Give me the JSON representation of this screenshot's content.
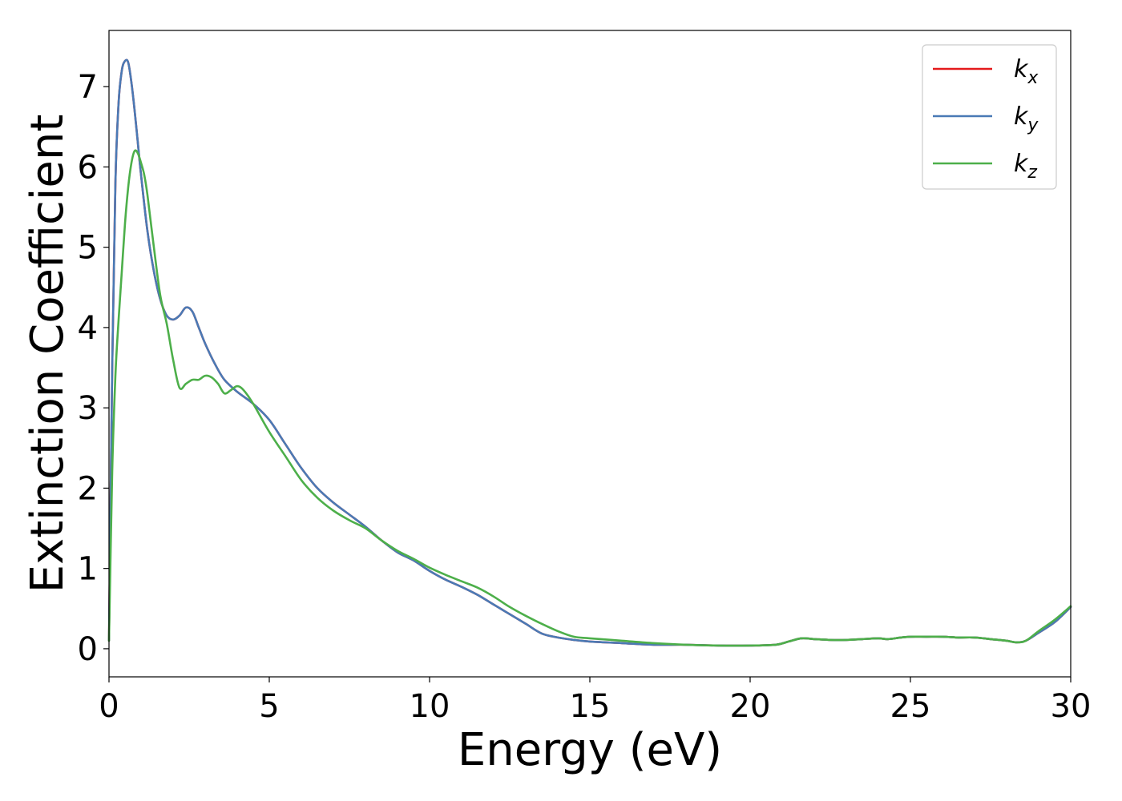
{
  "chart_data": {
    "type": "line",
    "title": "",
    "xlabel": "Energy (eV)",
    "ylabel": "Extinction Coefficient",
    "xlim": [
      0,
      30
    ],
    "ylim": [
      -0.35,
      7.7
    ],
    "xticks": [
      0,
      5,
      10,
      15,
      20,
      25,
      30
    ],
    "yticks": [
      0,
      1,
      2,
      3,
      4,
      5,
      6,
      7
    ],
    "grid": false,
    "legend_position": "top-right",
    "series": [
      {
        "name": "k_x",
        "label_base": "k",
        "label_sub": "x",
        "color": "#e41a1c",
        "x": [
          0,
          0.1,
          0.2,
          0.3,
          0.4,
          0.5,
          0.6,
          0.7,
          0.8,
          0.9,
          1.0,
          1.2,
          1.4,
          1.6,
          1.8,
          2.0,
          2.2,
          2.4,
          2.6,
          2.8,
          3.0,
          3.3,
          3.6,
          4.0,
          4.5,
          5.0,
          5.5,
          6.0,
          6.5,
          7.0,
          7.5,
          8.0,
          8.5,
          9.0,
          9.5,
          10.0,
          10.5,
          11.0,
          11.5,
          12.0,
          12.5,
          13.0,
          13.5,
          14.0,
          14.5,
          15.0,
          16.0,
          17.0,
          18.0,
          19.0,
          20.0,
          20.8,
          21.2,
          21.6,
          22.0,
          22.5,
          23.0,
          23.5,
          24.0,
          24.3,
          24.7,
          25.0,
          25.5,
          26.0,
          26.5,
          27.0,
          27.5,
          28.0,
          28.3,
          28.6,
          29.0,
          29.5,
          30.0
        ],
        "y": [
          0.1,
          3.5,
          5.8,
          6.8,
          7.2,
          7.32,
          7.3,
          7.05,
          6.7,
          6.3,
          5.9,
          5.2,
          4.7,
          4.35,
          4.15,
          4.1,
          4.15,
          4.25,
          4.2,
          4.0,
          3.8,
          3.55,
          3.35,
          3.2,
          3.05,
          2.85,
          2.55,
          2.25,
          2.0,
          1.82,
          1.67,
          1.52,
          1.35,
          1.2,
          1.1,
          0.97,
          0.86,
          0.77,
          0.67,
          0.55,
          0.43,
          0.31,
          0.19,
          0.14,
          0.11,
          0.09,
          0.07,
          0.05,
          0.05,
          0.04,
          0.04,
          0.05,
          0.09,
          0.13,
          0.12,
          0.11,
          0.11,
          0.12,
          0.13,
          0.12,
          0.14,
          0.15,
          0.15,
          0.15,
          0.14,
          0.14,
          0.12,
          0.1,
          0.08,
          0.1,
          0.2,
          0.33,
          0.52
        ]
      },
      {
        "name": "k_y",
        "label_base": "k",
        "label_sub": "y",
        "color": "#4a7ab5",
        "x": [
          0,
          0.1,
          0.2,
          0.3,
          0.4,
          0.5,
          0.6,
          0.7,
          0.8,
          0.9,
          1.0,
          1.2,
          1.4,
          1.6,
          1.8,
          2.0,
          2.2,
          2.4,
          2.6,
          2.8,
          3.0,
          3.3,
          3.6,
          4.0,
          4.5,
          5.0,
          5.5,
          6.0,
          6.5,
          7.0,
          7.5,
          8.0,
          8.5,
          9.0,
          9.5,
          10.0,
          10.5,
          11.0,
          11.5,
          12.0,
          12.5,
          13.0,
          13.5,
          14.0,
          14.5,
          15.0,
          16.0,
          17.0,
          18.0,
          19.0,
          20.0,
          20.8,
          21.2,
          21.6,
          22.0,
          22.5,
          23.0,
          23.5,
          24.0,
          24.3,
          24.7,
          25.0,
          25.5,
          26.0,
          26.5,
          27.0,
          27.5,
          28.0,
          28.3,
          28.6,
          29.0,
          29.5,
          30.0
        ],
        "y": [
          0.1,
          3.5,
          5.8,
          6.8,
          7.2,
          7.32,
          7.3,
          7.05,
          6.7,
          6.3,
          5.9,
          5.2,
          4.7,
          4.35,
          4.15,
          4.1,
          4.15,
          4.25,
          4.2,
          4.0,
          3.8,
          3.55,
          3.35,
          3.2,
          3.05,
          2.85,
          2.55,
          2.25,
          2.0,
          1.82,
          1.67,
          1.52,
          1.35,
          1.2,
          1.1,
          0.97,
          0.86,
          0.77,
          0.67,
          0.55,
          0.43,
          0.31,
          0.19,
          0.14,
          0.11,
          0.09,
          0.07,
          0.05,
          0.05,
          0.04,
          0.04,
          0.05,
          0.09,
          0.13,
          0.12,
          0.11,
          0.11,
          0.12,
          0.13,
          0.12,
          0.14,
          0.15,
          0.15,
          0.15,
          0.14,
          0.14,
          0.12,
          0.1,
          0.08,
          0.1,
          0.2,
          0.33,
          0.52
        ]
      },
      {
        "name": "k_z",
        "label_base": "k",
        "label_sub": "z",
        "color": "#4daf4a",
        "x": [
          0,
          0.1,
          0.2,
          0.3,
          0.4,
          0.5,
          0.6,
          0.7,
          0.8,
          0.9,
          1.0,
          1.1,
          1.2,
          1.4,
          1.6,
          1.8,
          2.0,
          2.2,
          2.4,
          2.6,
          2.8,
          3.0,
          3.2,
          3.4,
          3.6,
          3.8,
          4.0,
          4.2,
          4.5,
          5.0,
          5.5,
          6.0,
          6.5,
          7.0,
          7.5,
          8.0,
          8.5,
          9.0,
          9.5,
          10.0,
          10.5,
          11.0,
          11.5,
          12.0,
          12.5,
          13.0,
          13.5,
          14.0,
          14.5,
          15.0,
          16.0,
          17.0,
          18.0,
          19.0,
          20.0,
          20.8,
          21.2,
          21.6,
          22.0,
          22.5,
          23.0,
          23.5,
          24.0,
          24.3,
          24.7,
          25.0,
          25.5,
          26.0,
          26.5,
          27.0,
          27.5,
          28.0,
          28.3,
          28.6,
          29.0,
          29.5,
          30.0
        ],
        "y": [
          0.1,
          2.2,
          3.4,
          4.1,
          4.7,
          5.3,
          5.75,
          6.05,
          6.2,
          6.17,
          6.05,
          5.9,
          5.65,
          5.0,
          4.4,
          4.05,
          3.6,
          3.25,
          3.3,
          3.35,
          3.35,
          3.4,
          3.38,
          3.3,
          3.18,
          3.22,
          3.27,
          3.22,
          3.05,
          2.7,
          2.4,
          2.1,
          1.88,
          1.72,
          1.6,
          1.5,
          1.35,
          1.22,
          1.12,
          1.01,
          0.92,
          0.84,
          0.76,
          0.65,
          0.52,
          0.41,
          0.31,
          0.22,
          0.15,
          0.13,
          0.1,
          0.07,
          0.05,
          0.04,
          0.04,
          0.05,
          0.09,
          0.13,
          0.12,
          0.11,
          0.11,
          0.12,
          0.13,
          0.12,
          0.14,
          0.15,
          0.15,
          0.15,
          0.14,
          0.14,
          0.12,
          0.1,
          0.08,
          0.1,
          0.22,
          0.36,
          0.53
        ]
      }
    ]
  }
}
